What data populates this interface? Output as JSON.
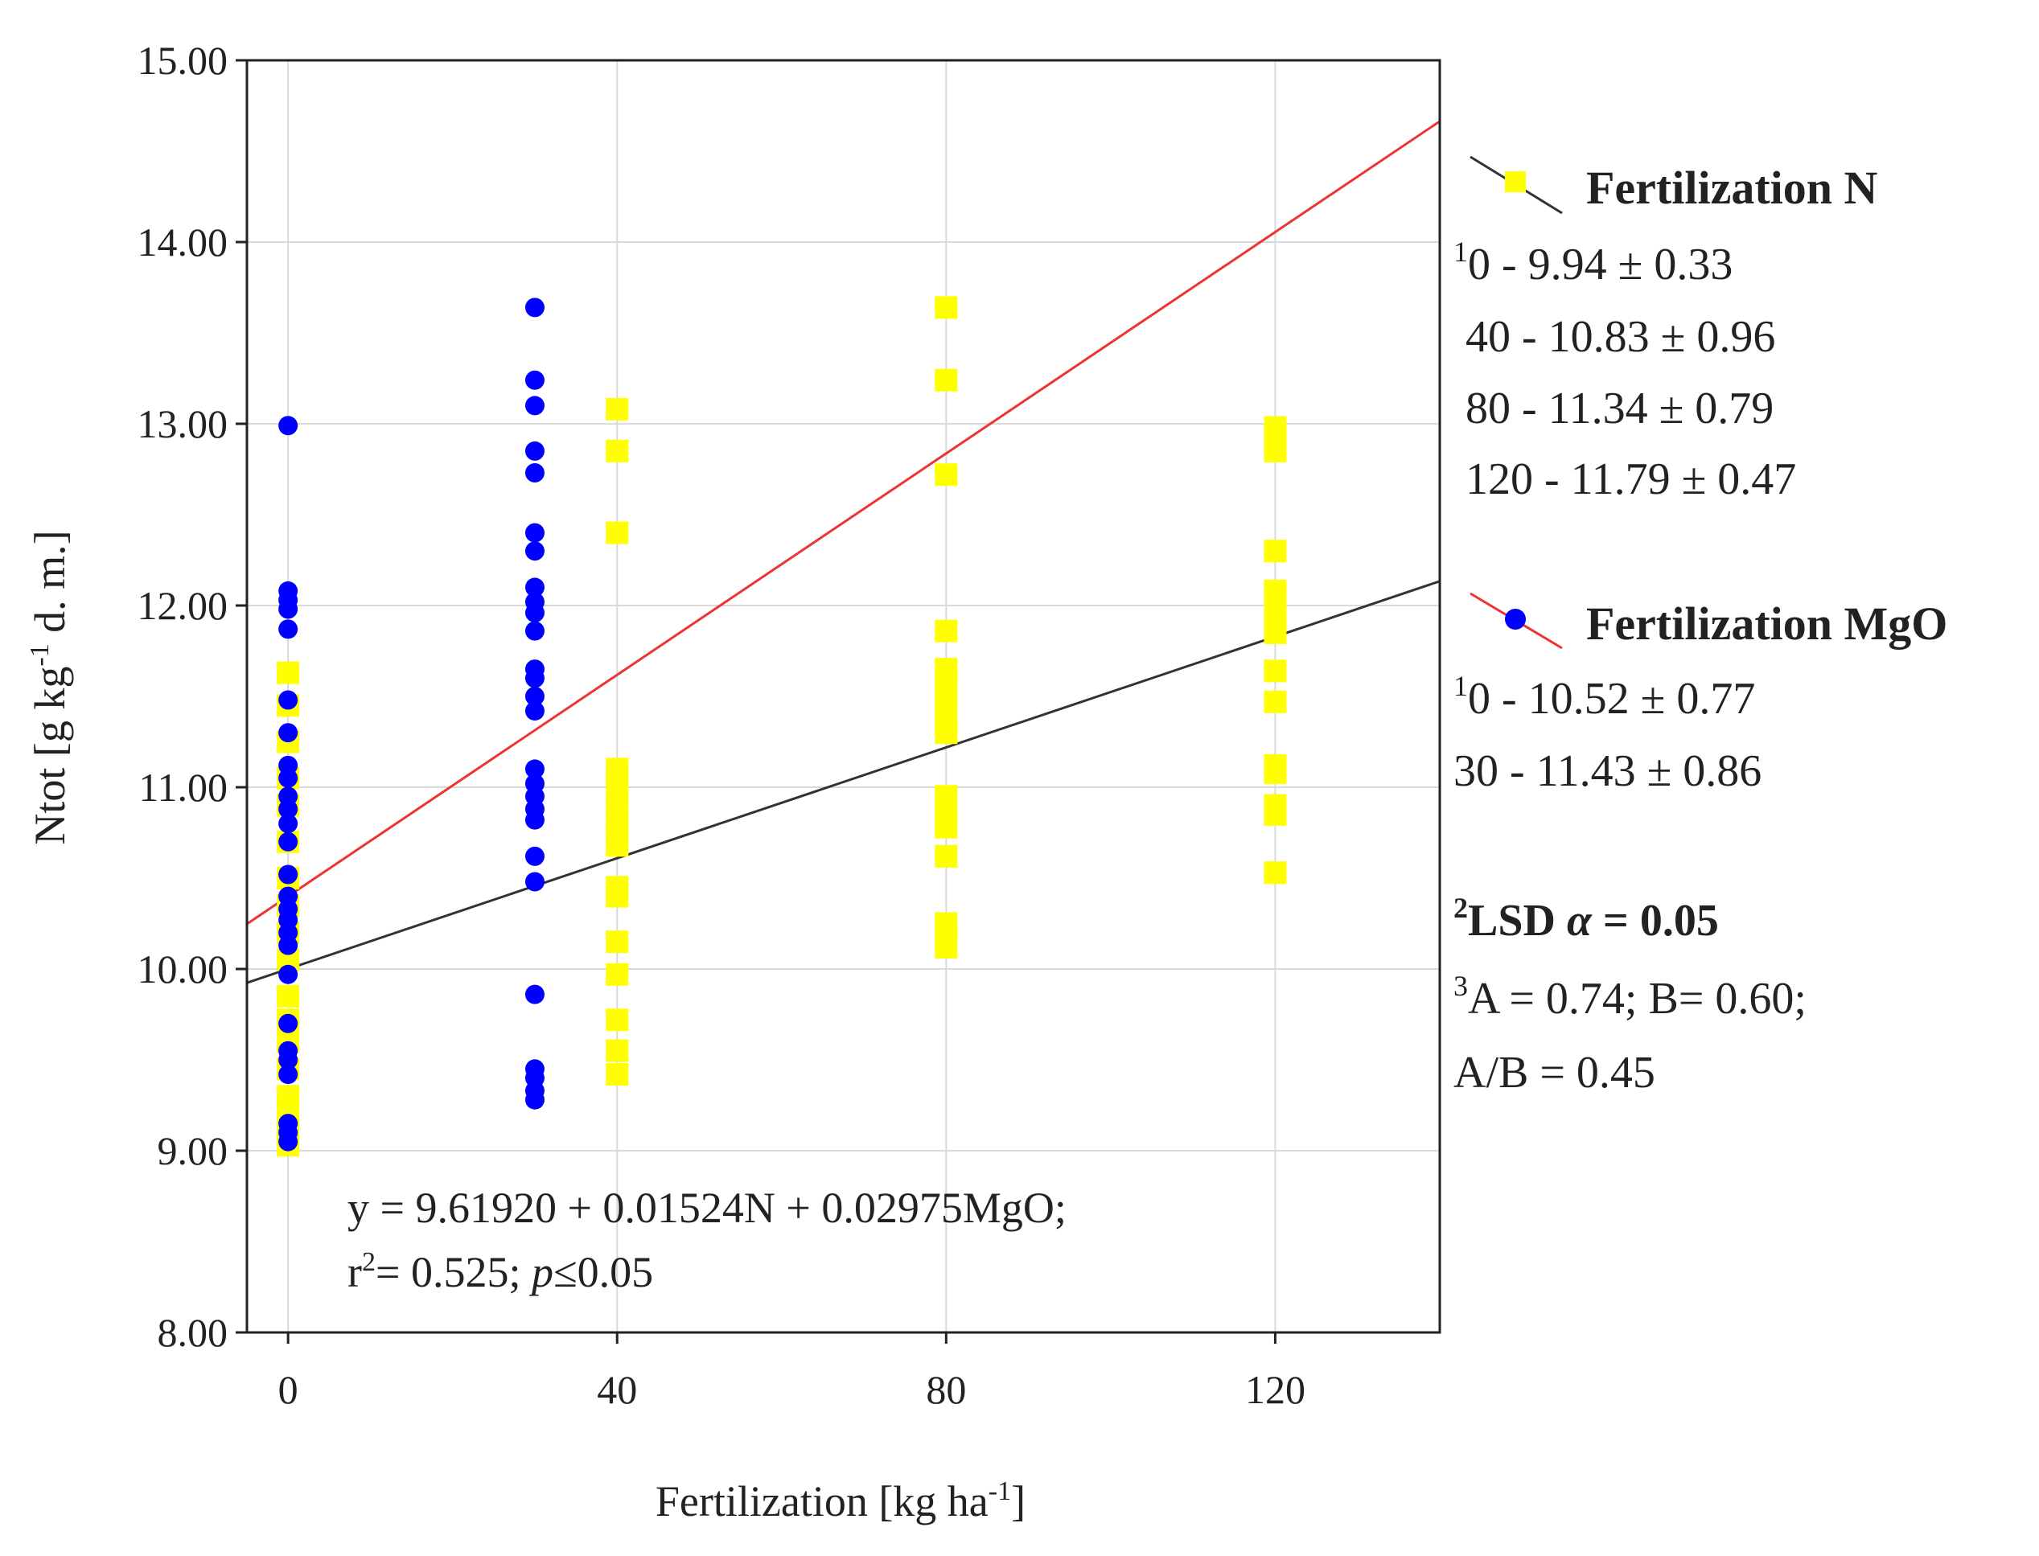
{
  "chart_data": {
    "type": "scatter",
    "title": "",
    "xlabel_main": "Fertilization [kg ha",
    "xlabel_sup": "-1",
    "xlabel_end": "]",
    "ylabel_main": "Ntot [g kg",
    "ylabel_sup": "-1",
    "ylabel_end": " d. m.]",
    "xlim": [
      -5,
      140
    ],
    "ylim": [
      8,
      15
    ],
    "x_ticks": [
      0,
      40,
      80,
      120
    ],
    "x_tick_labels": [
      "0",
      "40",
      "80",
      "120"
    ],
    "y_ticks": [
      8,
      9,
      10,
      11,
      12,
      13,
      14,
      15
    ],
    "y_tick_labels": [
      "8.00",
      "9.00",
      "10.00",
      "11.00",
      "12.00",
      "13.00",
      "14.00",
      "15.00"
    ],
    "grid": true,
    "series": [
      {
        "name": "Fertilization N",
        "marker": "square",
        "color": "#ffff00",
        "line_color": "#333333",
        "fit": {
          "intercept": 10.0,
          "slope": 0.01524
        },
        "points": [
          [
            0,
            9.03
          ],
          [
            0,
            9.1
          ],
          [
            0,
            9.2
          ],
          [
            0,
            9.3
          ],
          [
            0,
            9.45
          ],
          [
            0,
            9.6
          ],
          [
            0,
            9.72
          ],
          [
            0,
            9.85
          ],
          [
            0,
            10.05
          ],
          [
            0,
            10.2
          ],
          [
            0,
            10.35
          ],
          [
            0,
            10.5
          ],
          [
            0,
            10.7
          ],
          [
            0,
            10.9
          ],
          [
            0,
            11.05
          ],
          [
            0,
            11.25
          ],
          [
            0,
            11.45
          ],
          [
            0,
            11.63
          ],
          [
            40,
            9.42
          ],
          [
            40,
            9.55
          ],
          [
            40,
            9.72
          ],
          [
            40,
            9.97
          ],
          [
            40,
            10.15
          ],
          [
            40,
            10.4
          ],
          [
            40,
            10.45
          ],
          [
            40,
            10.68
          ],
          [
            40,
            10.75
          ],
          [
            40,
            10.82
          ],
          [
            40,
            10.9
          ],
          [
            40,
            10.97
          ],
          [
            40,
            11.05
          ],
          [
            40,
            11.1
          ],
          [
            40,
            12.4
          ],
          [
            40,
            12.85
          ],
          [
            40,
            13.08
          ],
          [
            80,
            10.12
          ],
          [
            80,
            10.2
          ],
          [
            80,
            10.25
          ],
          [
            80,
            10.62
          ],
          [
            80,
            10.78
          ],
          [
            80,
            10.85
          ],
          [
            80,
            10.95
          ],
          [
            80,
            11.3
          ],
          [
            80,
            11.35
          ],
          [
            80,
            11.45
          ],
          [
            80,
            11.52
          ],
          [
            80,
            11.6
          ],
          [
            80,
            11.65
          ],
          [
            80,
            11.86
          ],
          [
            80,
            12.72
          ],
          [
            80,
            13.24
          ],
          [
            80,
            13.64
          ],
          [
            120,
            10.53
          ],
          [
            120,
            10.85
          ],
          [
            120,
            10.9
          ],
          [
            120,
            11.08
          ],
          [
            120,
            11.12
          ],
          [
            120,
            11.47
          ],
          [
            120,
            11.64
          ],
          [
            120,
            11.85
          ],
          [
            120,
            11.92
          ],
          [
            120,
            12.0
          ],
          [
            120,
            12.08
          ],
          [
            120,
            12.3
          ],
          [
            120,
            12.85
          ],
          [
            120,
            12.92
          ],
          [
            120,
            12.98
          ]
        ]
      },
      {
        "name": "Fertilization MgO",
        "marker": "circle",
        "color": "#0000ff",
        "line_color": "#ee3333",
        "fit": {
          "intercept": 10.4,
          "slope": 0.03046
        },
        "points": [
          [
            0,
            9.05
          ],
          [
            0,
            9.1
          ],
          [
            0,
            9.15
          ],
          [
            0,
            9.42
          ],
          [
            0,
            9.5
          ],
          [
            0,
            9.55
          ],
          [
            0,
            9.7
          ],
          [
            0,
            9.97
          ],
          [
            0,
            10.13
          ],
          [
            0,
            10.2
          ],
          [
            0,
            10.27
          ],
          [
            0,
            10.33
          ],
          [
            0,
            10.4
          ],
          [
            0,
            10.52
          ],
          [
            0,
            10.7
          ],
          [
            0,
            10.8
          ],
          [
            0,
            10.88
          ],
          [
            0,
            10.95
          ],
          [
            0,
            11.05
          ],
          [
            0,
            11.12
          ],
          [
            0,
            11.3
          ],
          [
            0,
            11.48
          ],
          [
            0,
            11.87
          ],
          [
            0,
            11.98
          ],
          [
            0,
            12.03
          ],
          [
            0,
            12.08
          ],
          [
            0,
            12.99
          ],
          [
            30,
            9.28
          ],
          [
            30,
            9.33
          ],
          [
            30,
            9.4
          ],
          [
            30,
            9.45
          ],
          [
            30,
            9.86
          ],
          [
            30,
            10.48
          ],
          [
            30,
            10.62
          ],
          [
            30,
            10.82
          ],
          [
            30,
            10.88
          ],
          [
            30,
            10.95
          ],
          [
            30,
            11.02
          ],
          [
            30,
            11.1
          ],
          [
            30,
            11.42
          ],
          [
            30,
            11.5
          ],
          [
            30,
            11.6
          ],
          [
            30,
            11.65
          ],
          [
            30,
            11.86
          ],
          [
            30,
            11.96
          ],
          [
            30,
            12.02
          ],
          [
            30,
            12.1
          ],
          [
            30,
            12.3
          ],
          [
            30,
            12.4
          ],
          [
            30,
            12.73
          ],
          [
            30,
            12.85
          ],
          [
            30,
            13.1
          ],
          [
            30,
            13.24
          ],
          [
            30,
            13.64
          ]
        ]
      }
    ],
    "equation_lines": [
      {
        "parts": [
          "y = 9.61920 + 0.01524N + 0.02975MgO;"
        ]
      },
      {
        "r2_label": "r",
        "r2_sup": "2",
        "r2_rest": "= 0.525; ",
        "p_italic": "p",
        "p_rest": "≤0.05"
      }
    ]
  },
  "legend": {
    "n_title": "Fertilization N",
    "n_stats": [
      {
        "sup": "1",
        "text": "0 - 9.94 ± 0.33"
      },
      {
        "sup": "",
        "text": "40 - 10.83 ± 0.96"
      },
      {
        "sup": "",
        "text": "80 - 11.34 ± 0.79"
      },
      {
        "sup": "",
        "text": "120 - 11.79 ± 0.47"
      }
    ],
    "mgo_title": "Fertilization MgO",
    "mgo_stats": [
      {
        "sup": "1",
        "text": "0 - 10.52 ± 0.77"
      },
      {
        "sup": "",
        "text": "30 - 11.43 ± 0.86"
      }
    ],
    "lsd_sup": "2",
    "lsd_text": "LSD ",
    "lsd_alpha": "α",
    "lsd_rest": " = 0.05",
    "ab_sup": "3",
    "ab_text": "A = 0.74; B= 0.60;",
    "ab2_text": "A/B = 0.45"
  }
}
